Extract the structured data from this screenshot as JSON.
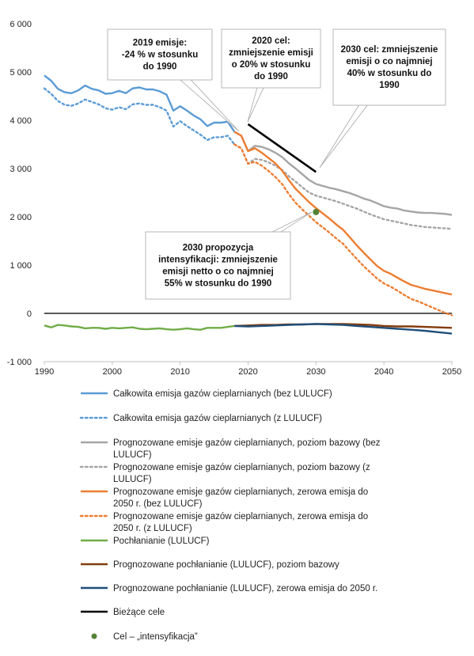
{
  "chart_data": {
    "type": "line",
    "title": "",
    "xlabel": "",
    "ylabel": "",
    "xlim": [
      1990,
      2050
    ],
    "ylim": [
      -1000,
      6000
    ],
    "x_ticks": [
      1990,
      2000,
      2010,
      2020,
      2030,
      2040,
      2050
    ],
    "y_ticks": [
      -1000,
      0,
      1000,
      2000,
      3000,
      4000,
      5000,
      6000
    ],
    "y_tick_labels": [
      "-1 000",
      "0",
      "1 000",
      "2 000",
      "3 000",
      "4 000",
      "5 000",
      "6 000"
    ],
    "grid": false,
    "legend_position": "bottom",
    "series": [
      {
        "name": "Całkowita emisja gazów cieplarnianych (bez LULUCF)",
        "color": "#5B9BD5",
        "dash": "solid",
        "x": [
          1990,
          1991,
          1992,
          1993,
          1994,
          1995,
          1996,
          1997,
          1998,
          1999,
          2000,
          2001,
          2002,
          2003,
          2004,
          2005,
          2006,
          2007,
          2008,
          2009,
          2010,
          2011,
          2012,
          2013,
          2014,
          2015,
          2016,
          2017,
          2018
        ],
        "y": [
          4930,
          4820,
          4650,
          4580,
          4560,
          4620,
          4720,
          4650,
          4620,
          4550,
          4560,
          4610,
          4560,
          4660,
          4680,
          4640,
          4640,
          4600,
          4530,
          4200,
          4290,
          4200,
          4100,
          4020,
          3880,
          3950,
          3950,
          3970,
          3760
        ]
      },
      {
        "name": "Całkowita emisja gazów cieplarnianych (z LULUCF)",
        "color": "#5B9BD5",
        "dash": "dotted",
        "x": [
          1990,
          1991,
          1992,
          1993,
          1994,
          1995,
          1996,
          1997,
          1998,
          1999,
          2000,
          2001,
          2002,
          2003,
          2004,
          2005,
          2006,
          2007,
          2008,
          2009,
          2010,
          2011,
          2012,
          2013,
          2014,
          2015,
          2016,
          2017,
          2018
        ],
        "y": [
          4660,
          4550,
          4400,
          4320,
          4300,
          4350,
          4430,
          4380,
          4330,
          4250,
          4220,
          4270,
          4230,
          4330,
          4350,
          4320,
          4320,
          4270,
          4200,
          3870,
          3980,
          3880,
          3790,
          3700,
          3590,
          3650,
          3650,
          3680,
          3500
        ]
      },
      {
        "name": "Prognozowane emisje gazów cieplarnianych, poziom bazowy (bez LULUCF)",
        "color": "#A5A5A5",
        "dash": "solid",
        "x": [
          2018,
          2019,
          2020,
          2021,
          2022,
          2023,
          2024,
          2025,
          2026,
          2027,
          2028,
          2029,
          2030,
          2031,
          2032,
          2033,
          2034,
          2035,
          2036,
          2037,
          2038,
          2039,
          2040,
          2041,
          2042,
          2043,
          2044,
          2045,
          2046,
          2047,
          2048,
          2049,
          2050
        ],
        "y": [
          3760,
          3680,
          3360,
          3470,
          3450,
          3400,
          3330,
          3240,
          3110,
          3000,
          2880,
          2760,
          2680,
          2640,
          2600,
          2570,
          2530,
          2490,
          2440,
          2380,
          2340,
          2280,
          2220,
          2190,
          2170,
          2130,
          2110,
          2090,
          2080,
          2080,
          2070,
          2060,
          2040
        ]
      },
      {
        "name": "Prognozowane emisje gazów cieplarnianych, poziom bazowy (z LULUCF)",
        "color": "#A5A5A5",
        "dash": "dotted",
        "x": [
          2018,
          2019,
          2020,
          2021,
          2022,
          2023,
          2024,
          2025,
          2026,
          2027,
          2028,
          2029,
          2030,
          2031,
          2032,
          2033,
          2034,
          2035,
          2036,
          2037,
          2038,
          2039,
          2040,
          2041,
          2042,
          2043,
          2044,
          2045,
          2046,
          2047,
          2048,
          2049,
          2050
        ],
        "y": [
          3500,
          3420,
          3100,
          3200,
          3180,
          3130,
          3060,
          2970,
          2840,
          2730,
          2610,
          2500,
          2440,
          2400,
          2360,
          2320,
          2270,
          2220,
          2170,
          2110,
          2050,
          2000,
          1950,
          1920,
          1890,
          1860,
          1830,
          1810,
          1790,
          1780,
          1770,
          1760,
          1750
        ]
      },
      {
        "name": "Prognozowane emisje gazów cieplarnianych, zerowa emisja do 2050 r. (bez LULUCF)",
        "color": "#ED7D31",
        "dash": "solid",
        "x": [
          2018,
          2019,
          2020,
          2021,
          2022,
          2023,
          2024,
          2025,
          2026,
          2027,
          2028,
          2029,
          2030,
          2031,
          2032,
          2033,
          2034,
          2035,
          2036,
          2037,
          2038,
          2039,
          2040,
          2041,
          2042,
          2043,
          2044,
          2045,
          2046,
          2047,
          2048,
          2049,
          2050
        ],
        "y": [
          3760,
          3680,
          3360,
          3420,
          3330,
          3220,
          3110,
          2960,
          2760,
          2580,
          2440,
          2300,
          2180,
          2070,
          1960,
          1840,
          1730,
          1570,
          1410,
          1260,
          1120,
          980,
          880,
          820,
          740,
          660,
          590,
          550,
          510,
          480,
          450,
          420,
          390
        ]
      },
      {
        "name": "Prognozowane emisje gazów cieplarnianych, zerowa emisja do 2050 r. (z LULUCF)",
        "color": "#ED7D31",
        "dash": "dotted",
        "x": [
          2018,
          2019,
          2020,
          2021,
          2022,
          2023,
          2024,
          2025,
          2026,
          2027,
          2028,
          2029,
          2030,
          2031,
          2032,
          2033,
          2034,
          2035,
          2036,
          2037,
          2038,
          2039,
          2040,
          2041,
          2042,
          2043,
          2044,
          2045,
          2046,
          2047,
          2048,
          2049,
          2050
        ],
        "y": [
          3500,
          3420,
          3100,
          3140,
          3060,
          2950,
          2830,
          2680,
          2470,
          2290,
          2150,
          2020,
          1890,
          1780,
          1670,
          1550,
          1440,
          1280,
          1130,
          980,
          850,
          720,
          620,
          550,
          470,
          380,
          300,
          250,
          190,
          130,
          70,
          10,
          -40
        ]
      },
      {
        "name": "Pochłanianie (LULUCF)",
        "color": "#70AD47",
        "dash": "solid",
        "x": [
          1990,
          1991,
          1992,
          1993,
          1994,
          1995,
          1996,
          1997,
          1998,
          1999,
          2000,
          2001,
          2002,
          2003,
          2004,
          2005,
          2006,
          2007,
          2008,
          2009,
          2010,
          2011,
          2012,
          2013,
          2014,
          2015,
          2016,
          2017,
          2018
        ],
        "y": [
          -250,
          -290,
          -240,
          -250,
          -270,
          -280,
          -310,
          -300,
          -300,
          -320,
          -300,
          -310,
          -300,
          -290,
          -320,
          -330,
          -320,
          -310,
          -330,
          -340,
          -330,
          -310,
          -330,
          -340,
          -300,
          -300,
          -300,
          -280,
          -260
        ]
      },
      {
        "name": "Prognozowane pochłanianie (LULUCF), poziom bazowy",
        "color": "#843C0C",
        "dash": "solid",
        "x": [
          2018,
          2020,
          2022,
          2024,
          2026,
          2028,
          2030,
          2032,
          2034,
          2036,
          2038,
          2040,
          2042,
          2044,
          2046,
          2048,
          2050
        ],
        "y": [
          -260,
          -250,
          -240,
          -240,
          -230,
          -230,
          -220,
          -220,
          -220,
          -230,
          -240,
          -260,
          -270,
          -270,
          -280,
          -290,
          -300
        ]
      },
      {
        "name": "Prognozowane pochłanianie (LULUCF), zerowa emisja do 2050 r.",
        "color": "#1F4E79",
        "dash": "solid",
        "x": [
          2018,
          2020,
          2022,
          2024,
          2026,
          2028,
          2030,
          2032,
          2034,
          2036,
          2038,
          2040,
          2042,
          2044,
          2046,
          2048,
          2050
        ],
        "y": [
          -260,
          -270,
          -260,
          -250,
          -240,
          -230,
          -220,
          -230,
          -240,
          -260,
          -280,
          -300,
          -320,
          -340,
          -360,
          -390,
          -420
        ]
      },
      {
        "name": "Bieżące cele",
        "color": "#000000",
        "dash": "solid",
        "x": [
          2020,
          2030
        ],
        "y": [
          3920,
          2930
        ]
      }
    ],
    "zero_line": {
      "y": 0,
      "color": "#595959"
    },
    "point": {
      "name": "Cel – „intensyfikacja”",
      "x": 2030,
      "y": 2100,
      "color": "#548235"
    },
    "annotations": [
      {
        "lines": [
          "2019 emisje:",
          "-24 % w stosunku",
          "do 1990"
        ],
        "target": [
          2018,
          3760
        ]
      },
      {
        "lines": [
          "2020 cel:",
          "zmniejszenie emisji",
          "o 20% w stosunku",
          "do 1990"
        ],
        "target": [
          2020,
          3920
        ]
      },
      {
        "lines": [
          "2030 cel: zmniejszenie",
          "emisji o co najmniej",
          "40% w stosunku do",
          "1990"
        ],
        "target": [
          2030,
          2930
        ]
      },
      {
        "lines": [
          "2030 propozycja",
          "intensyfikacji: zmniejszenie",
          "emisji netto o co najmniej",
          "55% w stosunku do 1990"
        ],
        "target": [
          2030,
          2100
        ]
      }
    ],
    "legend": [
      {
        "lines": [
          "Całkowita emisja gazów cieplarnianych (bez LULUCF)"
        ],
        "color": "#5B9BD5",
        "dash": "solid",
        "kind": "line"
      },
      {
        "lines": [
          "Całkowita emisja gazów cieplarnianych (z LULUCF)"
        ],
        "color": "#5B9BD5",
        "dash": "dotted",
        "kind": "line"
      },
      {
        "lines": [
          "Prognozowane emisje gazów cieplarnianych, poziom bazowy (bez",
          "LULUCF)"
        ],
        "color": "#A5A5A5",
        "dash": "solid",
        "kind": "line"
      },
      {
        "lines": [
          "Prognozowane emisje gazów cieplarnianych, poziom bazowy (z",
          "LULUCF)"
        ],
        "color": "#A5A5A5",
        "dash": "dotted",
        "kind": "line"
      },
      {
        "lines": [
          "Prognozowane emisje gazów cieplarnianych, zerowa emisja do",
          "2050 r. (bez LULUCF)"
        ],
        "color": "#ED7D31",
        "dash": "solid",
        "kind": "line"
      },
      {
        "lines": [
          "Prognozowane emisje gazów cieplarnianych, zerowa emisja do",
          "2050 r. (z LULUCF)"
        ],
        "color": "#ED7D31",
        "dash": "dotted",
        "kind": "line"
      },
      {
        "lines": [
          "Pochłanianie (LULUCF)"
        ],
        "color": "#70AD47",
        "dash": "solid",
        "kind": "line"
      },
      {
        "lines": [
          "Prognozowane pochłanianie (LULUCF), poziom bazowy"
        ],
        "color": "#843C0C",
        "dash": "solid",
        "kind": "line"
      },
      {
        "lines": [
          "Prognozowane pochłanianie (LULUCF), zerowa emisja do 2050 r."
        ],
        "color": "#1F4E79",
        "dash": "solid",
        "kind": "line"
      },
      {
        "lines": [
          "Bieżące cele"
        ],
        "color": "#000000",
        "dash": "solid",
        "kind": "line"
      },
      {
        "lines": [
          "Cel – „intensyfikacja”"
        ],
        "color": "#548235",
        "dash": "solid",
        "kind": "point"
      }
    ]
  }
}
